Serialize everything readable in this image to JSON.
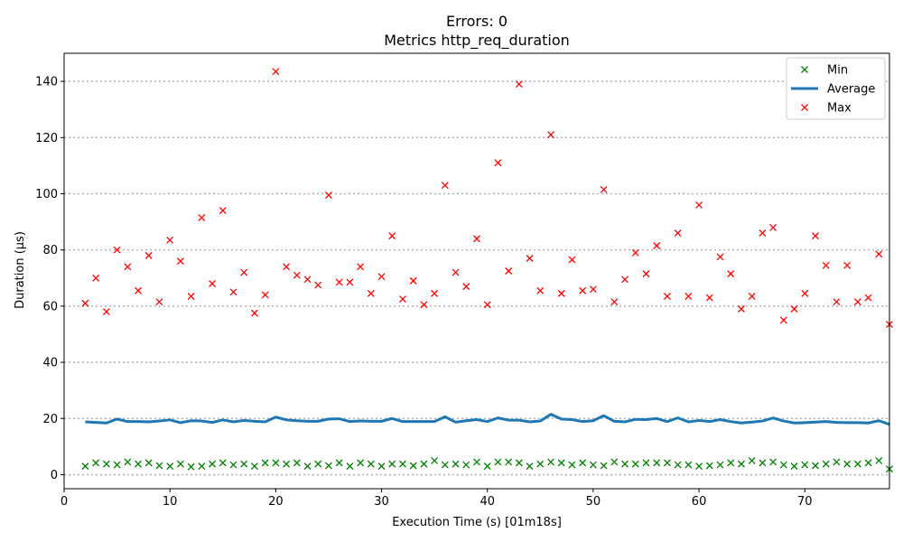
{
  "chart_data": {
    "type": "scatter",
    "title": "Errors: 0",
    "subtitle": "Metrics http_req_duration",
    "xlabel": "Execution Time (s) [01m18s]",
    "ylabel": "Duration (µs)",
    "xlim": [
      0,
      78
    ],
    "ylim": [
      -5,
      150
    ],
    "xticks": [
      0,
      10,
      20,
      30,
      40,
      50,
      60,
      70
    ],
    "yticks": [
      0,
      20,
      40,
      60,
      80,
      100,
      120,
      140
    ],
    "grid": "horizontal dotted",
    "legend_position": "top-right",
    "x": [
      2,
      3,
      4,
      5,
      6,
      7,
      8,
      9,
      10,
      11,
      12,
      13,
      14,
      15,
      16,
      17,
      18,
      19,
      20,
      21,
      22,
      23,
      24,
      25,
      26,
      27,
      28,
      29,
      30,
      31,
      32,
      33,
      34,
      35,
      36,
      37,
      38,
      39,
      40,
      41,
      42,
      43,
      44,
      45,
      46,
      47,
      48,
      49,
      50,
      51,
      52,
      53,
      54,
      55,
      56,
      57,
      58,
      59,
      60,
      61,
      62,
      63,
      64,
      65,
      66,
      67,
      68,
      69,
      70,
      71,
      72,
      73,
      74,
      75,
      76,
      77,
      78
    ],
    "series": [
      {
        "name": "Min",
        "kind": "marker",
        "color": "#008000",
        "values": [
          3.0,
          4.2,
          3.8,
          3.5,
          4.5,
          3.8,
          4.2,
          3.2,
          3.0,
          3.8,
          2.8,
          3.0,
          3.8,
          4.2,
          3.5,
          3.8,
          3.0,
          4.2,
          4.2,
          3.8,
          4.2,
          3.0,
          3.8,
          3.2,
          4.2,
          3.0,
          4.2,
          3.8,
          3.0,
          3.8,
          3.8,
          3.2,
          3.8,
          5.0,
          3.5,
          3.8,
          3.5,
          4.5,
          3.0,
          4.5,
          4.5,
          4.2,
          3.0,
          3.8,
          4.5,
          4.2,
          3.5,
          4.2,
          3.5,
          3.2,
          4.5,
          3.8,
          3.8,
          4.2,
          4.2,
          4.2,
          3.5,
          3.5,
          3.0,
          3.2,
          3.5,
          4.2,
          3.8,
          5.0,
          4.2,
          4.5,
          3.5,
          3.0,
          3.5,
          3.2,
          3.8,
          4.5,
          3.8,
          3.8,
          4.2,
          5.0,
          2.0
        ]
      },
      {
        "name": "Average",
        "kind": "line",
        "color": "#1f77b4",
        "values": [
          18.8,
          18.6,
          18.4,
          19.8,
          18.9,
          18.9,
          18.8,
          19.1,
          19.5,
          18.5,
          19.2,
          19.1,
          18.6,
          19.5,
          18.8,
          19.3,
          19.0,
          18.8,
          20.5,
          19.5,
          19.2,
          19.0,
          19.0,
          19.8,
          19.9,
          18.9,
          19.1,
          19.0,
          19.0,
          20.0,
          18.9,
          18.9,
          18.9,
          18.9,
          20.6,
          18.7,
          19.2,
          19.6,
          18.9,
          20.2,
          19.4,
          19.4,
          18.8,
          19.1,
          21.5,
          19.8,
          19.6,
          18.9,
          19.2,
          21.0,
          19.0,
          18.8,
          19.7,
          19.6,
          20.0,
          18.9,
          20.2,
          18.8,
          19.3,
          18.9,
          19.6,
          18.9,
          18.4,
          18.7,
          19.1,
          20.2,
          19.1,
          18.4,
          18.5,
          18.7,
          18.9,
          18.6,
          18.5,
          18.5,
          18.4,
          19.2,
          17.9
        ]
      },
      {
        "name": "Max",
        "kind": "marker",
        "color": "#ff0000",
        "values": [
          61,
          70,
          58,
          80,
          74,
          65.5,
          78,
          61.5,
          83.5,
          76,
          63.5,
          91.5,
          68,
          94,
          65,
          72,
          57.5,
          64,
          143.5,
          74,
          71,
          69.5,
          67.5,
          99.5,
          68.5,
          68.5,
          74,
          64.5,
          70.5,
          85,
          62.5,
          69,
          60.5,
          64.5,
          103,
          72,
          67,
          84,
          60.5,
          111,
          72.5,
          139,
          77,
          65.5,
          121,
          64.5,
          76.5,
          65.5,
          66,
          101.5,
          61.5,
          69.5,
          79,
          71.5,
          81.5,
          63.5,
          86,
          63.5,
          96,
          63,
          77.5,
          71.5,
          59,
          63.5,
          86,
          88,
          55,
          59,
          64.5,
          85,
          74.5,
          61.5,
          74.5,
          61.5,
          63,
          78.5,
          53.5
        ]
      }
    ]
  }
}
